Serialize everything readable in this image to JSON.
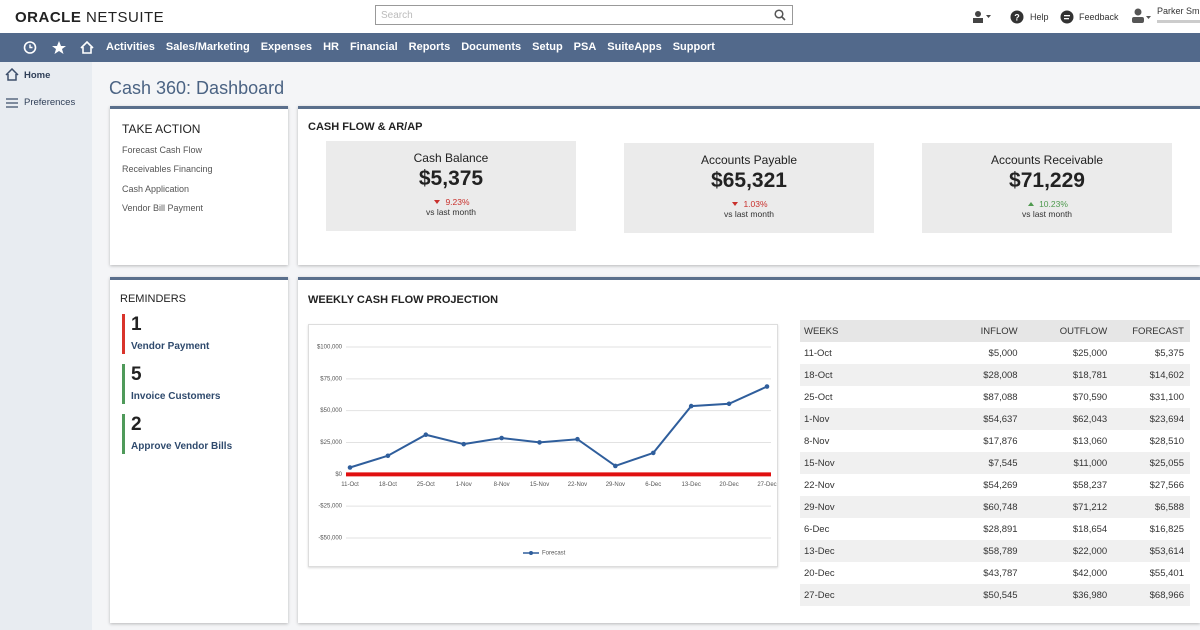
{
  "header": {
    "logo_brand": "ORACLE",
    "logo_product": "NETSUITE",
    "search_placeholder": "Search",
    "help": "Help",
    "feedback": "Feedback",
    "user_name": "Parker Sm"
  },
  "nav": [
    "Activities",
    "Sales/Marketing",
    "Expenses",
    "HR",
    "Financial",
    "Reports",
    "Documents",
    "Setup",
    "PSA",
    "SuiteApps",
    "Support"
  ],
  "sidebar": [
    "Home",
    "Preferences"
  ],
  "page_title": "Cash 360: Dashboard",
  "take_action": {
    "title": "TAKE ACTION",
    "links": [
      "Forecast Cash Flow",
      "Receivables Financing",
      "Cash Application",
      "Vendor Bill Payment"
    ]
  },
  "cash_flow": {
    "title": "CASH FLOW & AR/AP",
    "cards": [
      {
        "label": "Cash Balance",
        "value": "$5,375",
        "change": "9.23%",
        "trend": "down",
        "note": "vs last month"
      },
      {
        "label": "Accounts Payable",
        "value": "$65,321",
        "change": "1.03%",
        "trend": "down",
        "note": "vs last month"
      },
      {
        "label": "Accounts Receivable",
        "value": "$71,229",
        "change": "10.23%",
        "trend": "up",
        "note": "vs last month"
      }
    ]
  },
  "reminders": {
    "title": "REMINDERS",
    "items": [
      {
        "count": 1,
        "label": "Vendor Payment",
        "color": "#d9342b"
      },
      {
        "count": 5,
        "label": "Invoice Customers",
        "color": "#4f9a5a"
      },
      {
        "count": 2,
        "label": "Approve Vendor Bills",
        "color": "#4f9a5a"
      }
    ]
  },
  "projection": {
    "title": "WEEKLY CASH FLOW PROJECTION",
    "chart_data": {
      "type": "line",
      "categories": [
        "11-Oct",
        "18-Oct",
        "25-Oct",
        "1-Nov",
        "8-Nov",
        "15-Nov",
        "22-Nov",
        "29-Nov",
        "6-Dec",
        "13-Dec",
        "20-Dec",
        "27-Dec"
      ],
      "series": [
        {
          "name": "Forecast",
          "color": "#2f5e9c",
          "values": [
            5375,
            14602,
            31100,
            23694,
            28510,
            25055,
            27566,
            6588,
            16825,
            53614,
            55401,
            68966
          ]
        }
      ],
      "ylim": [
        -50000,
        100000
      ],
      "yticks": [
        {
          "value": -50000,
          "label": "-$50,000"
        },
        {
          "value": -25000,
          "label": "-$25,000"
        },
        {
          "value": 0,
          "label": "$0"
        },
        {
          "value": 25000,
          "label": "$25,000"
        },
        {
          "value": 50000,
          "label": "$50,000"
        },
        {
          "value": 75000,
          "label": "$75,000"
        },
        {
          "value": 100000,
          "label": "$100,000"
        }
      ],
      "grid": true,
      "zero_line_color": "#e01010",
      "legend": "bottom"
    },
    "table": {
      "columns": [
        "WEEKS",
        "INFLOW",
        "OUTFLOW",
        "FORECAST"
      ],
      "rows": [
        [
          "11-Oct",
          "$5,000",
          "$25,000",
          "$5,375"
        ],
        [
          "18-Oct",
          "$28,008",
          "$18,781",
          "$14,602"
        ],
        [
          "25-Oct",
          "$87,088",
          "$70,590",
          "$31,100"
        ],
        [
          "1-Nov",
          "$54,637",
          "$62,043",
          "$23,694"
        ],
        [
          "8-Nov",
          "$17,876",
          "$13,060",
          "$28,510"
        ],
        [
          "15-Nov",
          "$7,545",
          "$11,000",
          "$25,055"
        ],
        [
          "22-Nov",
          "$54,269",
          "$58,237",
          "$27,566"
        ],
        [
          "29-Nov",
          "$60,748",
          "$71,212",
          "$6,588"
        ],
        [
          "6-Dec",
          "$28,891",
          "$18,654",
          "$16,825"
        ],
        [
          "13-Dec",
          "$58,789",
          "$22,000",
          "$53,614"
        ],
        [
          "20-Dec",
          "$43,787",
          "$42,000",
          "$55,401"
        ],
        [
          "27-Dec",
          "$50,545",
          "$36,980",
          "$68,966"
        ]
      ]
    }
  }
}
